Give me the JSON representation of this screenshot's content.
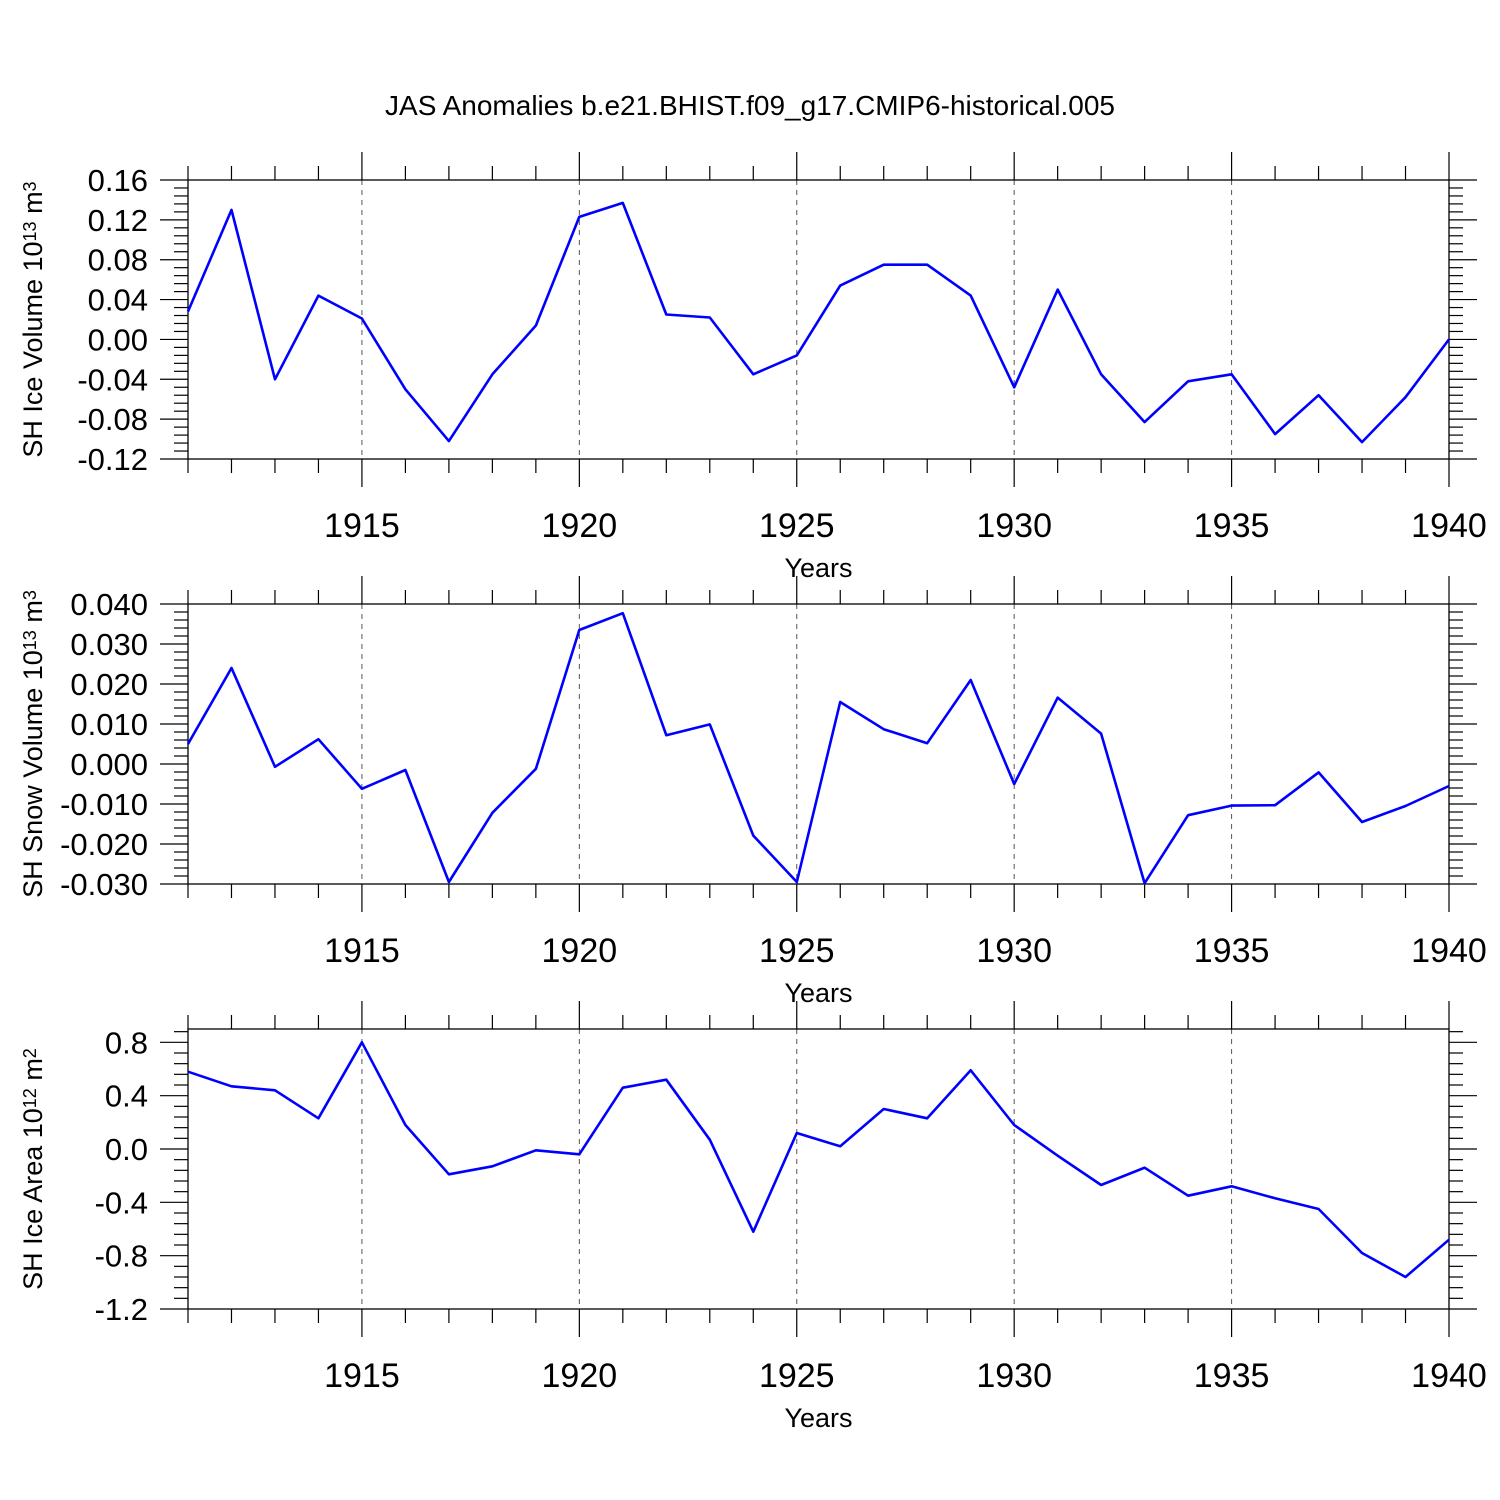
{
  "figure": {
    "title": "JAS Anomalies b.e21.BHIST.f09_g17.CMIP6-historical.005"
  },
  "chart_data": [
    {
      "type": "line",
      "title": "JAS Anomalies b.e21.BHIST.f09_g17.CMIP6-historical.005",
      "xlabel": "Years",
      "ylabel_main": "SH Ice Volume 10",
      "ylabel_exp": "13",
      "ylabel_unit": " m",
      "ylabel_unit_exp": "3",
      "xlim": [
        1911,
        1940
      ],
      "ylim": [
        -0.12,
        0.16
      ],
      "grid": "vertical dashed at major x ticks",
      "x_ticks": [
        1915,
        1920,
        1925,
        1930,
        1935,
        1940
      ],
      "x_tick_labels": [
        "1915",
        "1920",
        "1925",
        "1930",
        "1935",
        "1940"
      ],
      "y_ticks": [
        -0.12,
        -0.08,
        -0.04,
        0.0,
        0.04,
        0.08,
        0.12,
        0.16
      ],
      "y_tick_labels": [
        "-0.12",
        "-0.08",
        "-0.04",
        "0.00",
        "0.04",
        "0.08",
        "0.12",
        "0.16"
      ],
      "series": [
        {
          "name": "SH Ice Volume",
          "color": "#0000ff",
          "x": [
            1911,
            1912,
            1913,
            1914,
            1915,
            1916,
            1917,
            1918,
            1919,
            1920,
            1921,
            1922,
            1923,
            1924,
            1925,
            1926,
            1927,
            1928,
            1929,
            1930,
            1931,
            1932,
            1933,
            1934,
            1935,
            1936,
            1937,
            1938,
            1939,
            1940
          ],
          "values": [
            0.028,
            0.13,
            -0.04,
            0.044,
            0.021,
            -0.05,
            -0.102,
            -0.035,
            0.014,
            0.123,
            0.137,
            0.025,
            0.022,
            -0.035,
            -0.016,
            0.054,
            0.075,
            0.075,
            0.044,
            -0.048,
            0.05,
            -0.035,
            -0.083,
            -0.042,
            -0.035,
            -0.095,
            -0.056,
            -0.103,
            -0.058,
            0.0
          ]
        }
      ]
    },
    {
      "type": "line",
      "xlabel": "Years",
      "ylabel_main": "SH Snow Volume 10",
      "ylabel_exp": "13",
      "ylabel_unit": " m",
      "ylabel_unit_exp": "3",
      "xlim": [
        1911,
        1940
      ],
      "ylim": [
        -0.03,
        0.04
      ],
      "grid": "vertical dashed at major x ticks",
      "x_ticks": [
        1915,
        1920,
        1925,
        1930,
        1935,
        1940
      ],
      "x_tick_labels": [
        "1915",
        "1920",
        "1925",
        "1930",
        "1935",
        "1940"
      ],
      "y_ticks": [
        -0.03,
        -0.02,
        -0.01,
        0.0,
        0.01,
        0.02,
        0.03,
        0.04
      ],
      "y_tick_labels": [
        "-0.030",
        "-0.020",
        "-0.010",
        "0.000",
        "0.010",
        "0.020",
        "0.030",
        "0.040"
      ],
      "series": [
        {
          "name": "SH Snow Volume",
          "color": "#0000ff",
          "x": [
            1911,
            1912,
            1913,
            1914,
            1915,
            1916,
            1917,
            1918,
            1919,
            1920,
            1921,
            1922,
            1923,
            1924,
            1925,
            1926,
            1927,
            1928,
            1929,
            1930,
            1931,
            1932,
            1933,
            1934,
            1935,
            1936,
            1937,
            1938,
            1939,
            1940
          ],
          "values": [
            0.005,
            0.024,
            -0.0007,
            0.0062,
            -0.0062,
            -0.0015,
            -0.0295,
            -0.0122,
            -0.0012,
            0.0335,
            0.0377,
            0.0072,
            0.0099,
            -0.0179,
            -0.0295,
            0.0155,
            0.0087,
            0.0052,
            0.021,
            -0.005,
            0.0166,
            0.0076,
            -0.0298,
            -0.0128,
            -0.0104,
            -0.0103,
            -0.0021,
            -0.0145,
            -0.0105,
            -0.0055
          ]
        }
      ]
    },
    {
      "type": "line",
      "xlabel": "Years",
      "ylabel_main": "SH Ice Area 10",
      "ylabel_exp": "12",
      "ylabel_unit": " m",
      "ylabel_unit_exp": "2",
      "xlim": [
        1911,
        1940
      ],
      "ylim": [
        -1.2,
        0.9
      ],
      "grid": "vertical dashed at major x ticks",
      "x_ticks": [
        1915,
        1920,
        1925,
        1930,
        1935,
        1940
      ],
      "x_tick_labels": [
        "1915",
        "1920",
        "1925",
        "1930",
        "1935",
        "1940"
      ],
      "y_ticks": [
        -1.2,
        -0.8,
        -0.4,
        0.0,
        0.4,
        0.8
      ],
      "y_tick_labels": [
        "-1.2",
        "-0.8",
        "-0.4",
        "0.0",
        "0.4",
        "0.8"
      ],
      "series": [
        {
          "name": "SH Ice Area",
          "color": "#0000ff",
          "x": [
            1911,
            1912,
            1913,
            1914,
            1915,
            1916,
            1917,
            1918,
            1919,
            1920,
            1921,
            1922,
            1923,
            1924,
            1925,
            1926,
            1927,
            1928,
            1929,
            1930,
            1931,
            1932,
            1933,
            1934,
            1935,
            1936,
            1937,
            1938,
            1939,
            1940
          ],
          "values": [
            0.58,
            0.47,
            0.44,
            0.23,
            0.8,
            0.18,
            -0.19,
            -0.13,
            -0.01,
            -0.04,
            0.46,
            0.52,
            0.07,
            -0.62,
            0.12,
            0.02,
            0.3,
            0.23,
            0.59,
            0.18,
            -0.05,
            -0.27,
            -0.14,
            -0.35,
            -0.28,
            -0.37,
            -0.45,
            -0.78,
            -0.96,
            -0.68
          ]
        }
      ]
    }
  ]
}
